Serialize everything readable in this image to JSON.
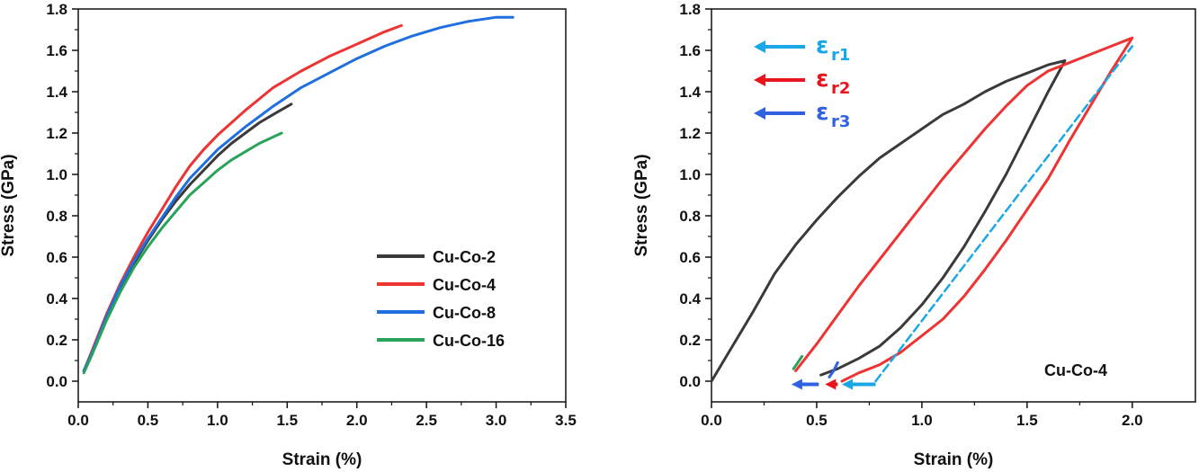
{
  "chart_data": [
    {
      "type": "line",
      "xlabel": "Strain (%)",
      "ylabel": "Stress (GPa)",
      "xlim": [
        0,
        3.5
      ],
      "ylim": [
        -0.1,
        1.8
      ],
      "xticks": [
        "0.0",
        "0.5",
        "1.0",
        "1.5",
        "2.0",
        "2.5",
        "3.0",
        "3.5"
      ],
      "yticks": [
        "0.0",
        "0.2",
        "0.4",
        "0.6",
        "0.8",
        "1.0",
        "1.2",
        "1.4",
        "1.6",
        "1.8"
      ],
      "legend_position": "bottom-right",
      "series": [
        {
          "name": "Cu-Co-2",
          "color": "#3a3a3a",
          "points": [
            [
              0.04,
              0.05
            ],
            [
              0.1,
              0.14
            ],
            [
              0.2,
              0.3
            ],
            [
              0.3,
              0.45
            ],
            [
              0.4,
              0.57
            ],
            [
              0.5,
              0.68
            ],
            [
              0.6,
              0.78
            ],
            [
              0.7,
              0.87
            ],
            [
              0.8,
              0.95
            ],
            [
              0.9,
              1.02
            ],
            [
              1.0,
              1.09
            ],
            [
              1.1,
              1.15
            ],
            [
              1.2,
              1.2
            ],
            [
              1.3,
              1.25
            ],
            [
              1.4,
              1.29
            ],
            [
              1.53,
              1.34
            ]
          ]
        },
        {
          "name": "Cu-Co-4",
          "color": "#ee3333",
          "points": [
            [
              0.04,
              0.05
            ],
            [
              0.1,
              0.15
            ],
            [
              0.2,
              0.32
            ],
            [
              0.3,
              0.47
            ],
            [
              0.4,
              0.6
            ],
            [
              0.5,
              0.72
            ],
            [
              0.6,
              0.83
            ],
            [
              0.7,
              0.94
            ],
            [
              0.8,
              1.04
            ],
            [
              0.9,
              1.12
            ],
            [
              1.0,
              1.19
            ],
            [
              1.2,
              1.31
            ],
            [
              1.4,
              1.42
            ],
            [
              1.6,
              1.5
            ],
            [
              1.8,
              1.57
            ],
            [
              2.0,
              1.63
            ],
            [
              2.2,
              1.69
            ],
            [
              2.32,
              1.72
            ]
          ]
        },
        {
          "name": "Cu-Co-8",
          "color": "#1f6fe0",
          "points": [
            [
              0.04,
              0.05
            ],
            [
              0.1,
              0.14
            ],
            [
              0.2,
              0.31
            ],
            [
              0.3,
              0.46
            ],
            [
              0.4,
              0.58
            ],
            [
              0.5,
              0.69
            ],
            [
              0.6,
              0.79
            ],
            [
              0.7,
              0.89
            ],
            [
              0.8,
              0.98
            ],
            [
              0.9,
              1.05
            ],
            [
              1.0,
              1.12
            ],
            [
              1.2,
              1.23
            ],
            [
              1.4,
              1.33
            ],
            [
              1.6,
              1.42
            ],
            [
              1.8,
              1.49
            ],
            [
              2.0,
              1.56
            ],
            [
              2.2,
              1.62
            ],
            [
              2.4,
              1.67
            ],
            [
              2.6,
              1.71
            ],
            [
              2.8,
              1.74
            ],
            [
              3.0,
              1.76
            ],
            [
              3.12,
              1.76
            ]
          ]
        },
        {
          "name": "Cu-Co-16",
          "color": "#2aa35a",
          "points": [
            [
              0.04,
              0.04
            ],
            [
              0.1,
              0.13
            ],
            [
              0.2,
              0.29
            ],
            [
              0.3,
              0.43
            ],
            [
              0.4,
              0.55
            ],
            [
              0.5,
              0.65
            ],
            [
              0.6,
              0.74
            ],
            [
              0.7,
              0.82
            ],
            [
              0.8,
              0.9
            ],
            [
              0.9,
              0.96
            ],
            [
              1.0,
              1.02
            ],
            [
              1.1,
              1.07
            ],
            [
              1.2,
              1.11
            ],
            [
              1.3,
              1.15
            ],
            [
              1.46,
              1.2
            ]
          ]
        }
      ]
    },
    {
      "type": "line",
      "xlabel": "Strain (%)",
      "ylabel": "Stress (GPa)",
      "xlim": [
        0,
        2.3
      ],
      "ylim": [
        -0.1,
        1.8
      ],
      "xticks": [
        "0.0",
        "0.5",
        "1.0",
        "1.5",
        "2.0"
      ],
      "yticks": [
        "0.0",
        "0.2",
        "0.4",
        "0.6",
        "0.8",
        "1.0",
        "1.2",
        "1.4",
        "1.6",
        "1.8"
      ],
      "annotation": "Cu-Co-4",
      "strain_labels": [
        {
          "symbol": "ε",
          "sub": "r1",
          "color": "#1aa7e8"
        },
        {
          "symbol": "ε",
          "sub": "r2",
          "color": "#e8141e"
        },
        {
          "symbol": "ε",
          "sub": "r3",
          "color": "#2f62e0"
        }
      ],
      "series": [
        {
          "color": "#3a3a3a",
          "style": "solid",
          "points": [
            [
              0.0,
              0.0
            ],
            [
              0.1,
              0.17
            ],
            [
              0.2,
              0.34
            ],
            [
              0.3,
              0.52
            ],
            [
              0.4,
              0.66
            ],
            [
              0.5,
              0.78
            ],
            [
              0.6,
              0.89
            ],
            [
              0.7,
              0.99
            ],
            [
              0.8,
              1.08
            ],
            [
              0.9,
              1.15
            ],
            [
              1.0,
              1.22
            ],
            [
              1.1,
              1.29
            ],
            [
              1.2,
              1.34
            ],
            [
              1.3,
              1.4
            ],
            [
              1.4,
              1.45
            ],
            [
              1.5,
              1.49
            ],
            [
              1.6,
              1.53
            ],
            [
              1.68,
              1.55
            ],
            [
              1.6,
              1.4
            ],
            [
              1.5,
              1.2
            ],
            [
              1.4,
              1.0
            ],
            [
              1.3,
              0.82
            ],
            [
              1.2,
              0.65
            ],
            [
              1.1,
              0.5
            ],
            [
              1.0,
              0.37
            ],
            [
              0.9,
              0.26
            ],
            [
              0.8,
              0.17
            ],
            [
              0.7,
              0.11
            ],
            [
              0.6,
              0.06
            ],
            [
              0.52,
              0.03
            ]
          ]
        },
        {
          "color": "#ee3333",
          "style": "solid",
          "points": [
            [
              0.4,
              0.05
            ],
            [
              0.5,
              0.18
            ],
            [
              0.6,
              0.32
            ],
            [
              0.7,
              0.46
            ],
            [
              0.8,
              0.59
            ],
            [
              0.9,
              0.72
            ],
            [
              1.0,
              0.85
            ],
            [
              1.1,
              0.98
            ],
            [
              1.2,
              1.1
            ],
            [
              1.3,
              1.22
            ],
            [
              1.4,
              1.33
            ],
            [
              1.5,
              1.43
            ],
            [
              1.6,
              1.5
            ],
            [
              1.7,
              1.54
            ],
            [
              1.8,
              1.58
            ],
            [
              1.9,
              1.62
            ],
            [
              2.0,
              1.66
            ],
            [
              1.9,
              1.5
            ],
            [
              1.8,
              1.33
            ],
            [
              1.7,
              1.16
            ],
            [
              1.6,
              0.98
            ],
            [
              1.5,
              0.83
            ],
            [
              1.4,
              0.68
            ],
            [
              1.3,
              0.54
            ],
            [
              1.2,
              0.41
            ],
            [
              1.1,
              0.3
            ],
            [
              1.0,
              0.22
            ],
            [
              0.9,
              0.14
            ],
            [
              0.8,
              0.08
            ],
            [
              0.7,
              0.04
            ],
            [
              0.62,
              0.0
            ]
          ]
        },
        {
          "color": "#2aa35a",
          "style": "solid",
          "points": [
            [
              0.39,
              0.06
            ],
            [
              0.41,
              0.09
            ],
            [
              0.43,
              0.12
            ]
          ]
        },
        {
          "color": "#2f62e0",
          "style": "solid",
          "points": [
            [
              0.56,
              0.02
            ],
            [
              0.58,
              0.05
            ],
            [
              0.6,
              0.09
            ]
          ]
        },
        {
          "color": "#1aa7e8",
          "style": "dashed",
          "points": [
            [
              0.78,
              0.0
            ],
            [
              2.0,
              1.62
            ]
          ]
        }
      ],
      "arrows": [
        {
          "color": "#1aa7e8",
          "x_start": 0.78,
          "x_end": 0.62,
          "y": -0.015
        },
        {
          "color": "#e8141e",
          "x_start": 0.6,
          "x_end": 0.54,
          "y": -0.015
        },
        {
          "color": "#2f62e0",
          "x_start": 0.51,
          "x_end": 0.38,
          "y": -0.015
        }
      ]
    }
  ]
}
